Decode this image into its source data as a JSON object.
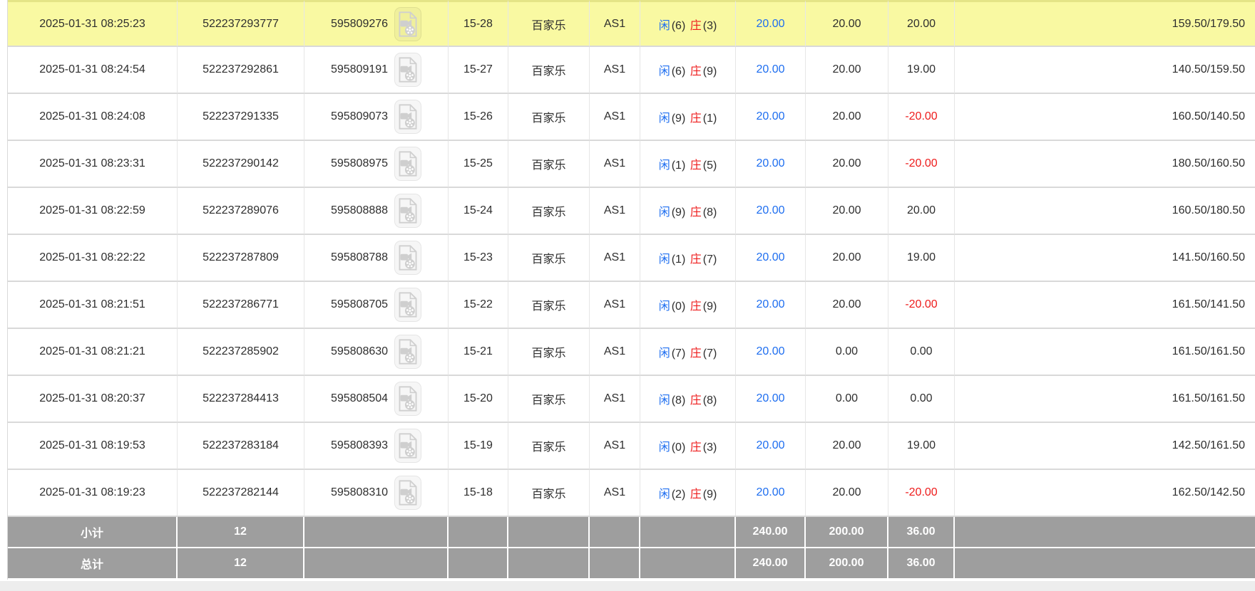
{
  "colors": {
    "highlight_row": "#f9f9a2",
    "player_blue": "#1e6ef0",
    "banker_red": "#ee1c1c",
    "bet_blue": "#1e6ef0",
    "negative_red": "#ee1c1c",
    "summary_bg": "#9e9e9e"
  },
  "icons": {
    "game_record_action": "video-replay-icon"
  },
  "table": {
    "rows": [
      {
        "time": "2025-01-31 08:25:23",
        "order_no": "522237293777",
        "game_no": "595809276",
        "round": "15-28",
        "game": "百家乐",
        "table_name": "AS1",
        "player": "闲",
        "player_score": "(6)",
        "banker": "庄",
        "banker_score": "(3)",
        "bet": "20.00",
        "valid_bet": "20.00",
        "win_loss": "20.00",
        "balance": "159.50/179.50",
        "highlight": true
      },
      {
        "time": "2025-01-31 08:24:54",
        "order_no": "522237292861",
        "game_no": "595809191",
        "round": "15-27",
        "game": "百家乐",
        "table_name": "AS1",
        "player": "闲",
        "player_score": "(6)",
        "banker": "庄",
        "banker_score": "(9)",
        "bet": "20.00",
        "valid_bet": "20.00",
        "win_loss": "19.00",
        "balance": "140.50/159.50",
        "highlight": false
      },
      {
        "time": "2025-01-31 08:24:08",
        "order_no": "522237291335",
        "game_no": "595809073",
        "round": "15-26",
        "game": "百家乐",
        "table_name": "AS1",
        "player": "闲",
        "player_score": "(9)",
        "banker": "庄",
        "banker_score": "(1)",
        "bet": "20.00",
        "valid_bet": "20.00",
        "win_loss": "-20.00",
        "balance": "160.50/140.50",
        "highlight": false
      },
      {
        "time": "2025-01-31 08:23:31",
        "order_no": "522237290142",
        "game_no": "595808975",
        "round": "15-25",
        "game": "百家乐",
        "table_name": "AS1",
        "player": "闲",
        "player_score": "(1)",
        "banker": "庄",
        "banker_score": "(5)",
        "bet": "20.00",
        "valid_bet": "20.00",
        "win_loss": "-20.00",
        "balance": "180.50/160.50",
        "highlight": false
      },
      {
        "time": "2025-01-31 08:22:59",
        "order_no": "522237289076",
        "game_no": "595808888",
        "round": "15-24",
        "game": "百家乐",
        "table_name": "AS1",
        "player": "闲",
        "player_score": "(9)",
        "banker": "庄",
        "banker_score": "(8)",
        "bet": "20.00",
        "valid_bet": "20.00",
        "win_loss": "20.00",
        "balance": "160.50/180.50",
        "highlight": false
      },
      {
        "time": "2025-01-31 08:22:22",
        "order_no": "522237287809",
        "game_no": "595808788",
        "round": "15-23",
        "game": "百家乐",
        "table_name": "AS1",
        "player": "闲",
        "player_score": "(1)",
        "banker": "庄",
        "banker_score": "(7)",
        "bet": "20.00",
        "valid_bet": "20.00",
        "win_loss": "19.00",
        "balance": "141.50/160.50",
        "highlight": false
      },
      {
        "time": "2025-01-31 08:21:51",
        "order_no": "522237286771",
        "game_no": "595808705",
        "round": "15-22",
        "game": "百家乐",
        "table_name": "AS1",
        "player": "闲",
        "player_score": "(0)",
        "banker": "庄",
        "banker_score": "(9)",
        "bet": "20.00",
        "valid_bet": "20.00",
        "win_loss": "-20.00",
        "balance": "161.50/141.50",
        "highlight": false
      },
      {
        "time": "2025-01-31 08:21:21",
        "order_no": "522237285902",
        "game_no": "595808630",
        "round": "15-21",
        "game": "百家乐",
        "table_name": "AS1",
        "player": "闲",
        "player_score": "(7)",
        "banker": "庄",
        "banker_score": "(7)",
        "bet": "20.00",
        "valid_bet": "0.00",
        "win_loss": "0.00",
        "balance": "161.50/161.50",
        "highlight": false
      },
      {
        "time": "2025-01-31 08:20:37",
        "order_no": "522237284413",
        "game_no": "595808504",
        "round": "15-20",
        "game": "百家乐",
        "table_name": "AS1",
        "player": "闲",
        "player_score": "(8)",
        "banker": "庄",
        "banker_score": "(8)",
        "bet": "20.00",
        "valid_bet": "0.00",
        "win_loss": "0.00",
        "balance": "161.50/161.50",
        "highlight": false
      },
      {
        "time": "2025-01-31 08:19:53",
        "order_no": "522237283184",
        "game_no": "595808393",
        "round": "15-19",
        "game": "百家乐",
        "table_name": "AS1",
        "player": "闲",
        "player_score": "(0)",
        "banker": "庄",
        "banker_score": "(3)",
        "bet": "20.00",
        "valid_bet": "20.00",
        "win_loss": "19.00",
        "balance": "142.50/161.50",
        "highlight": false
      },
      {
        "time": "2025-01-31 08:19:23",
        "order_no": "522237282144",
        "game_no": "595808310",
        "round": "15-18",
        "game": "百家乐",
        "table_name": "AS1",
        "player": "闲",
        "player_score": "(2)",
        "banker": "庄",
        "banker_score": "(9)",
        "bet": "20.00",
        "valid_bet": "20.00",
        "win_loss": "-20.00",
        "balance": "162.50/142.50",
        "highlight": false
      }
    ],
    "subtotal": {
      "label": "小计",
      "count": "12",
      "bet": "240.00",
      "valid_bet": "200.00",
      "win_loss": "36.00"
    },
    "total": {
      "label": "总计",
      "count": "12",
      "bet": "240.00",
      "valid_bet": "200.00",
      "win_loss": "36.00"
    }
  }
}
